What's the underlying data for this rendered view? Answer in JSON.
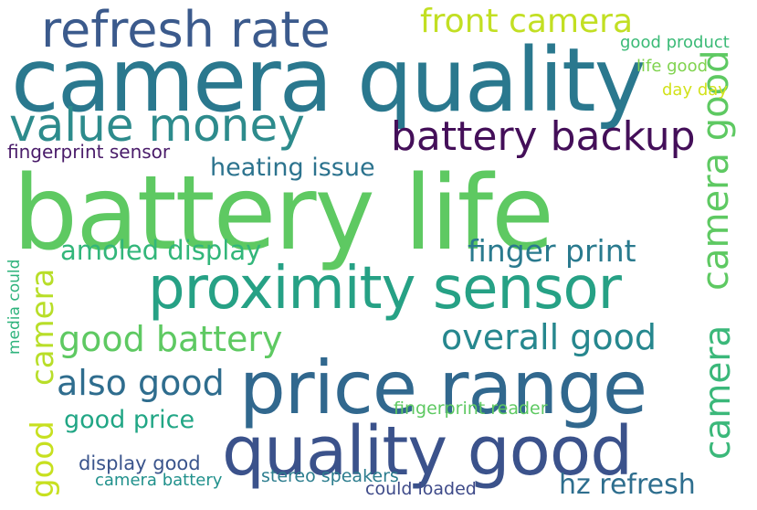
{
  "words": [
    {
      "key": "battery-life",
      "text": "battery life",
      "color": "#5ec962"
    },
    {
      "key": "camera-quality",
      "text": "camera quality",
      "color": "#2a788e"
    },
    {
      "key": "price-range",
      "text": "price range",
      "color": "#31688e"
    },
    {
      "key": "quality-good",
      "text": "quality good",
      "color": "#3b528b"
    },
    {
      "key": "proximity-sensor",
      "text": "proximity sensor",
      "color": "#26a185"
    },
    {
      "key": "refresh-rate",
      "text": "refresh rate",
      "color": "#3b5a8c"
    },
    {
      "key": "value-money",
      "text": "value money",
      "color": "#2d8b8c"
    },
    {
      "key": "battery-backup",
      "text": "battery backup",
      "color": "#440f59"
    },
    {
      "key": "front-camera",
      "text": "front camera",
      "color": "#c2df23"
    },
    {
      "key": "camera-good",
      "text": "camera good",
      "color": "#5ec962"
    },
    {
      "key": "camera-vertical",
      "text": "camera",
      "color": "#b8de29"
    },
    {
      "key": "good-vertical",
      "text": "good",
      "color": "#c7e020"
    },
    {
      "key": "camera-right",
      "text": "camera",
      "color": "#3bb87a"
    },
    {
      "key": "good-battery",
      "text": "good battery",
      "color": "#5ec962"
    },
    {
      "key": "overall-good",
      "text": "overall good",
      "color": "#26878e"
    },
    {
      "key": "also-good",
      "text": "also good",
      "color": "#2f6d8e"
    },
    {
      "key": "finger-print",
      "text": "finger print",
      "color": "#2a7a8e"
    },
    {
      "key": "amoled-display",
      "text": "amoled display",
      "color": "#32b67a"
    },
    {
      "key": "heating-issue",
      "text": "heating issue",
      "color": "#2c738e"
    },
    {
      "key": "hz-refresh",
      "text": "hz refresh",
      "color": "#2e6e8e"
    },
    {
      "key": "good-price",
      "text": "good price",
      "color": "#21a685"
    },
    {
      "key": "fingerprint-sensor",
      "text": "fingerprint sensor",
      "color": "#4a1c6a"
    },
    {
      "key": "good-product",
      "text": "good product",
      "color": "#3aba76"
    },
    {
      "key": "life-good",
      "text": "life good",
      "color": "#7fd34e"
    },
    {
      "key": "day-day",
      "text": "day day",
      "color": "#d2e21b"
    },
    {
      "key": "fingerprint-reader",
      "text": "fingerprint reader",
      "color": "#5ec962"
    },
    {
      "key": "display-good",
      "text": "display good",
      "color": "#3a548c"
    },
    {
      "key": "camera-battery",
      "text": "camera battery",
      "color": "#21918c"
    },
    {
      "key": "stereo-speakers",
      "text": "stereo speakers",
      "color": "#2c7d8e"
    },
    {
      "key": "could-loaded",
      "text": "could loaded",
      "color": "#3e4a89"
    },
    {
      "key": "media-could",
      "text": "media could",
      "color": "#2eb37c"
    }
  ]
}
